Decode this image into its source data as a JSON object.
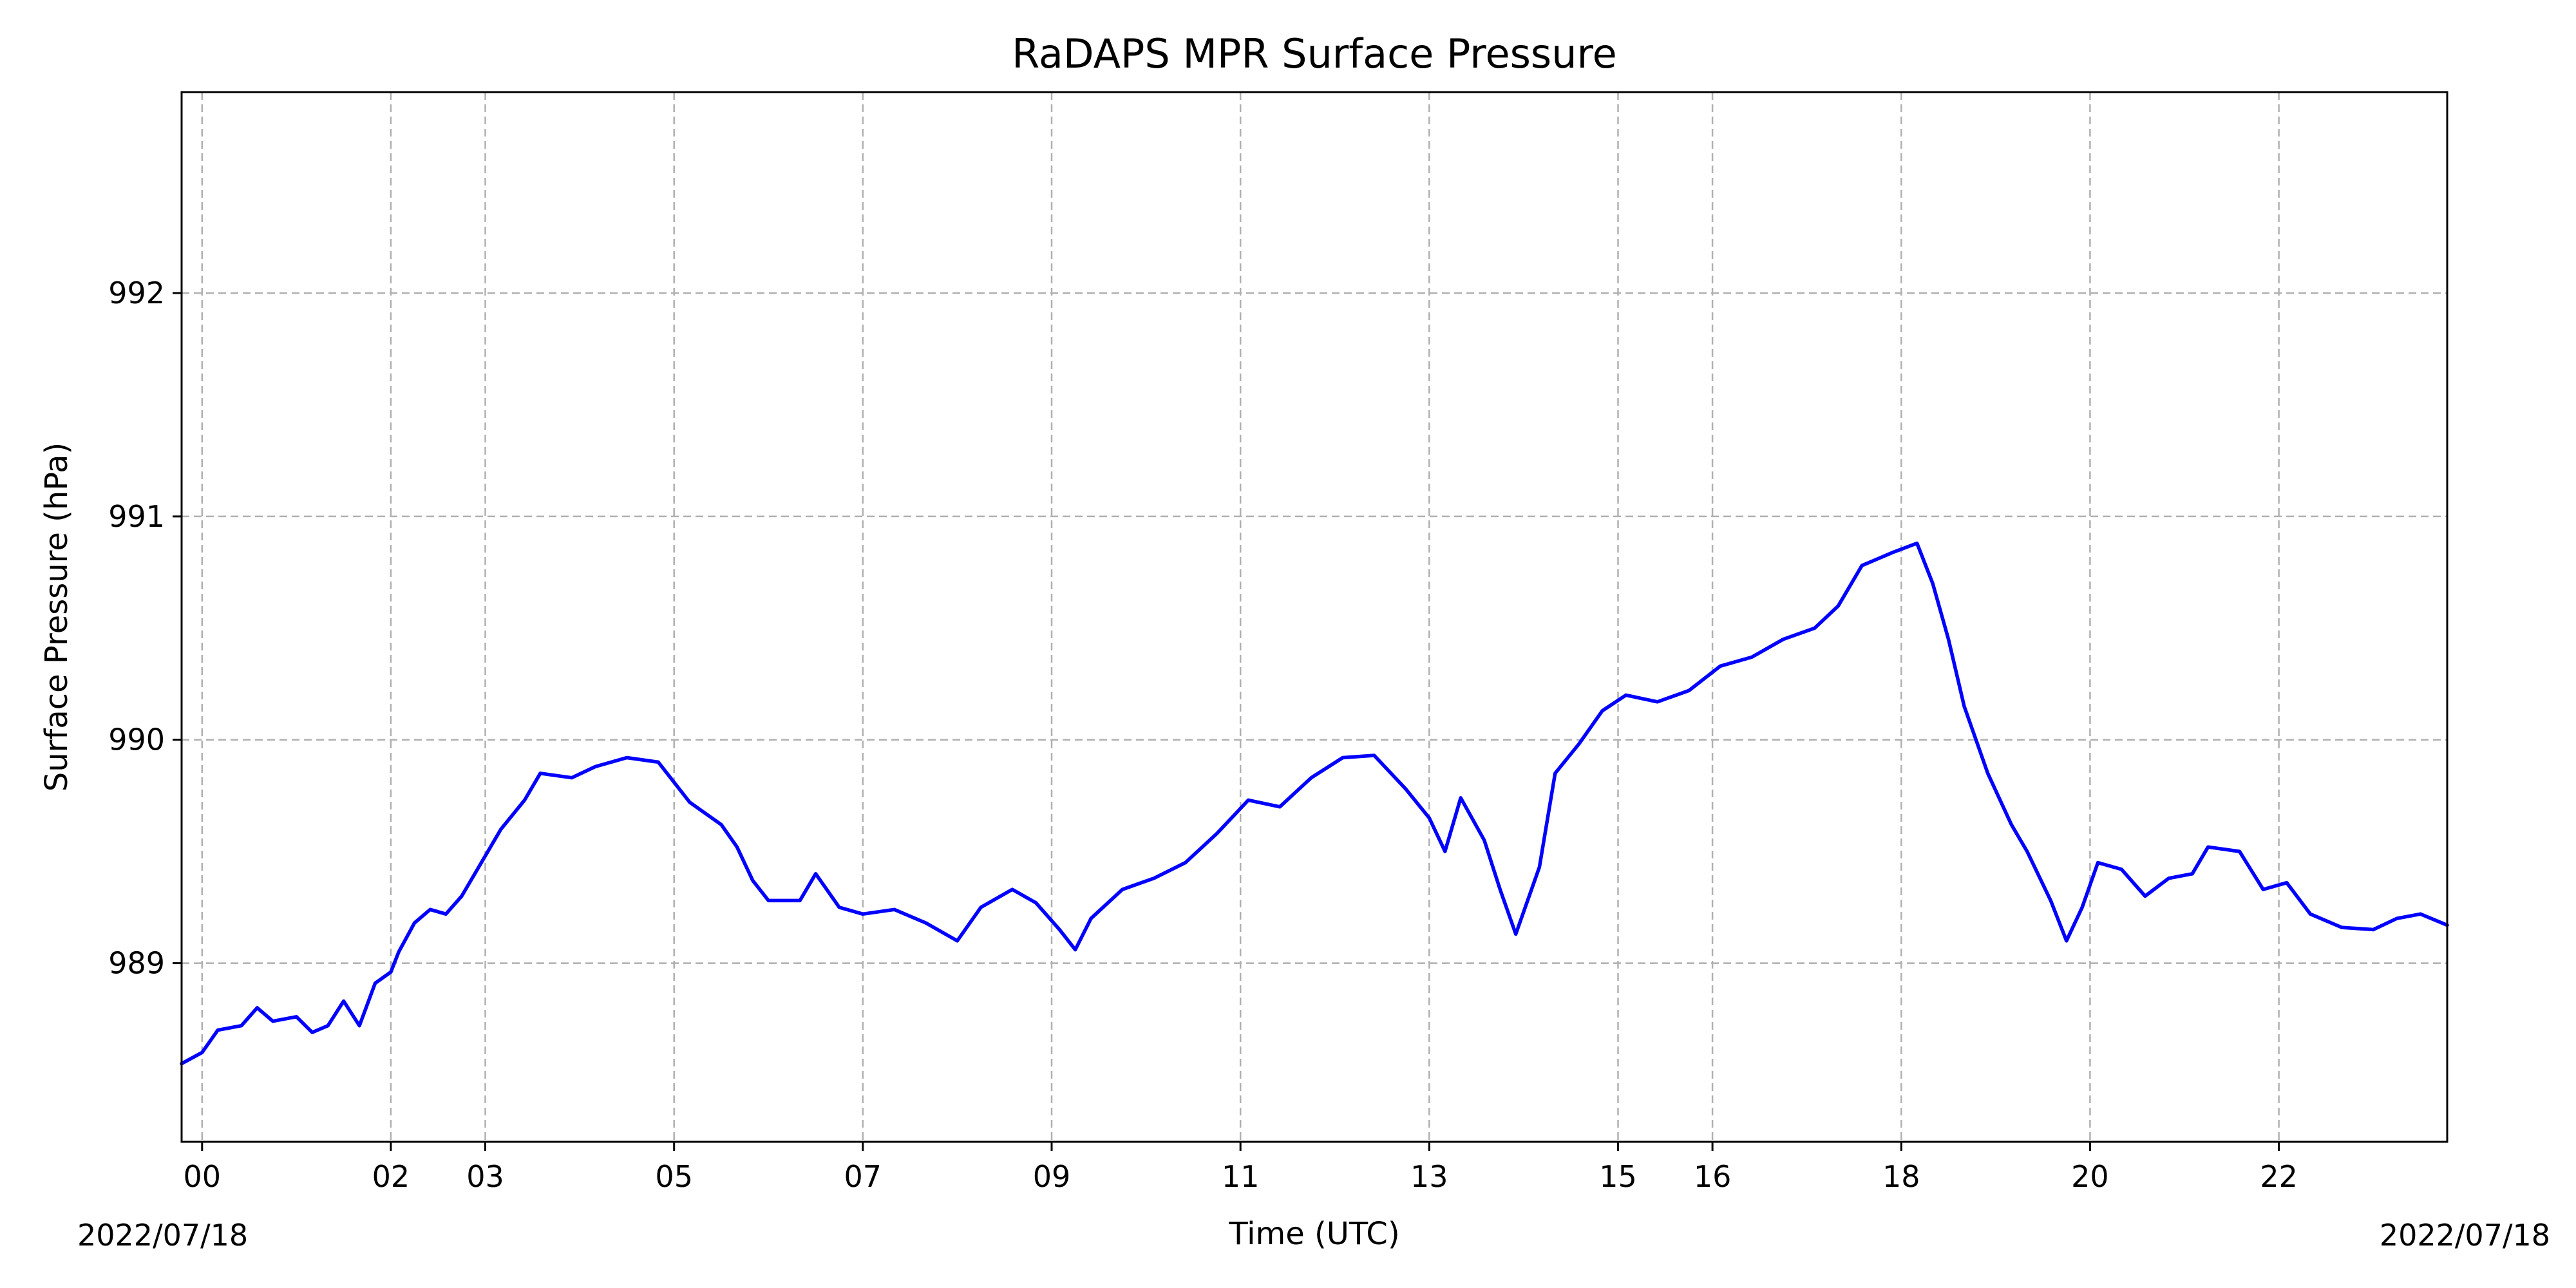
{
  "chart_data": {
    "type": "line",
    "title": "RaDAPS MPR Surface Pressure",
    "xlabel": "Time (UTC)",
    "ylabel": "Surface Pressure (hPa)",
    "x_start_label": "2022/07/18",
    "x_end_label": "2022/07/18",
    "xlim": [
      "2022-07-17T23:47",
      "2022-07-18T23:47"
    ],
    "ylim": [
      988.2,
      992.9
    ],
    "grid": true,
    "line_color": "#0000ff",
    "x_ticks": [
      {
        "t": "2022-07-18T00:00",
        "label": "00"
      },
      {
        "t": "2022-07-18T02:00",
        "label": "02"
      },
      {
        "t": "2022-07-18T03:00",
        "label": "03"
      },
      {
        "t": "2022-07-18T05:00",
        "label": "05"
      },
      {
        "t": "2022-07-18T07:00",
        "label": "07"
      },
      {
        "t": "2022-07-18T09:00",
        "label": "09"
      },
      {
        "t": "2022-07-18T11:00",
        "label": "11"
      },
      {
        "t": "2022-07-18T13:00",
        "label": "13"
      },
      {
        "t": "2022-07-18T15:00",
        "label": "15"
      },
      {
        "t": "2022-07-18T16:00",
        "label": "16"
      },
      {
        "t": "2022-07-18T18:00",
        "label": "18"
      },
      {
        "t": "2022-07-18T20:00",
        "label": "20"
      },
      {
        "t": "2022-07-18T22:00",
        "label": "22"
      }
    ],
    "y_ticks": [
      989,
      990,
      991,
      992
    ],
    "series": [
      {
        "points": [
          [
            "2022-07-17T23:47",
            988.55
          ],
          [
            "2022-07-18T00:00",
            988.6
          ],
          [
            "2022-07-18T00:10",
            988.7
          ],
          [
            "2022-07-18T00:25",
            988.72
          ],
          [
            "2022-07-18T00:35",
            988.8
          ],
          [
            "2022-07-18T00:45",
            988.74
          ],
          [
            "2022-07-18T01:00",
            988.76
          ],
          [
            "2022-07-18T01:10",
            988.69
          ],
          [
            "2022-07-18T01:20",
            988.72
          ],
          [
            "2022-07-18T01:30",
            988.83
          ],
          [
            "2022-07-18T01:40",
            988.72
          ],
          [
            "2022-07-18T01:50",
            988.91
          ],
          [
            "2022-07-18T02:00",
            988.96
          ],
          [
            "2022-07-18T02:05",
            989.05
          ],
          [
            "2022-07-18T02:15",
            989.18
          ],
          [
            "2022-07-18T02:25",
            989.24
          ],
          [
            "2022-07-18T02:35",
            989.22
          ],
          [
            "2022-07-18T02:45",
            989.3
          ],
          [
            "2022-07-18T03:00",
            989.48
          ],
          [
            "2022-07-18T03:10",
            989.6
          ],
          [
            "2022-07-18T03:25",
            989.73
          ],
          [
            "2022-07-18T03:35",
            989.85
          ],
          [
            "2022-07-18T03:55",
            989.83
          ],
          [
            "2022-07-18T04:10",
            989.88
          ],
          [
            "2022-07-18T04:30",
            989.92
          ],
          [
            "2022-07-18T04:50",
            989.9
          ],
          [
            "2022-07-18T05:10",
            989.72
          ],
          [
            "2022-07-18T05:30",
            989.62
          ],
          [
            "2022-07-18T05:40",
            989.52
          ],
          [
            "2022-07-18T05:50",
            989.37
          ],
          [
            "2022-07-18T06:00",
            989.28
          ],
          [
            "2022-07-18T06:20",
            989.28
          ],
          [
            "2022-07-18T06:30",
            989.4
          ],
          [
            "2022-07-18T06:45",
            989.25
          ],
          [
            "2022-07-18T07:00",
            989.22
          ],
          [
            "2022-07-18T07:20",
            989.24
          ],
          [
            "2022-07-18T07:40",
            989.18
          ],
          [
            "2022-07-18T08:00",
            989.1
          ],
          [
            "2022-07-18T08:15",
            989.25
          ],
          [
            "2022-07-18T08:35",
            989.33
          ],
          [
            "2022-07-18T08:50",
            989.27
          ],
          [
            "2022-07-18T09:05",
            989.15
          ],
          [
            "2022-07-18T09:15",
            989.06
          ],
          [
            "2022-07-18T09:25",
            989.2
          ],
          [
            "2022-07-18T09:45",
            989.33
          ],
          [
            "2022-07-18T10:05",
            989.38
          ],
          [
            "2022-07-18T10:25",
            989.45
          ],
          [
            "2022-07-18T10:45",
            989.58
          ],
          [
            "2022-07-18T11:05",
            989.73
          ],
          [
            "2022-07-18T11:25",
            989.7
          ],
          [
            "2022-07-18T11:45",
            989.83
          ],
          [
            "2022-07-18T12:05",
            989.92
          ],
          [
            "2022-07-18T12:25",
            989.93
          ],
          [
            "2022-07-18T12:45",
            989.78
          ],
          [
            "2022-07-18T13:00",
            989.65
          ],
          [
            "2022-07-18T13:10",
            989.5
          ],
          [
            "2022-07-18T13:20",
            989.74
          ],
          [
            "2022-07-18T13:35",
            989.55
          ],
          [
            "2022-07-18T13:45",
            989.33
          ],
          [
            "2022-07-18T13:55",
            989.13
          ],
          [
            "2022-07-18T14:10",
            989.43
          ],
          [
            "2022-07-18T14:20",
            989.85
          ],
          [
            "2022-07-18T14:35",
            989.98
          ],
          [
            "2022-07-18T14:50",
            990.13
          ],
          [
            "2022-07-18T15:05",
            990.2
          ],
          [
            "2022-07-18T15:25",
            990.17
          ],
          [
            "2022-07-18T15:45",
            990.22
          ],
          [
            "2022-07-18T16:05",
            990.33
          ],
          [
            "2022-07-18T16:25",
            990.37
          ],
          [
            "2022-07-18T16:45",
            990.45
          ],
          [
            "2022-07-18T17:05",
            990.5
          ],
          [
            "2022-07-18T17:20",
            990.6
          ],
          [
            "2022-07-18T17:35",
            990.78
          ],
          [
            "2022-07-18T17:55",
            990.84
          ],
          [
            "2022-07-18T18:10",
            990.88
          ],
          [
            "2022-07-18T18:20",
            990.7
          ],
          [
            "2022-07-18T18:30",
            990.45
          ],
          [
            "2022-07-18T18:40",
            990.15
          ],
          [
            "2022-07-18T18:55",
            989.85
          ],
          [
            "2022-07-18T19:10",
            989.62
          ],
          [
            "2022-07-18T19:20",
            989.5
          ],
          [
            "2022-07-18T19:35",
            989.28
          ],
          [
            "2022-07-18T19:45",
            989.1
          ],
          [
            "2022-07-18T19:55",
            989.25
          ],
          [
            "2022-07-18T20:05",
            989.45
          ],
          [
            "2022-07-18T20:20",
            989.42
          ],
          [
            "2022-07-18T20:35",
            989.3
          ],
          [
            "2022-07-18T20:50",
            989.38
          ],
          [
            "2022-07-18T21:05",
            989.4
          ],
          [
            "2022-07-18T21:15",
            989.52
          ],
          [
            "2022-07-18T21:35",
            989.5
          ],
          [
            "2022-07-18T21:50",
            989.33
          ],
          [
            "2022-07-18T22:05",
            989.36
          ],
          [
            "2022-07-18T22:20",
            989.22
          ],
          [
            "2022-07-18T22:40",
            989.16
          ],
          [
            "2022-07-18T23:00",
            989.15
          ],
          [
            "2022-07-18T23:15",
            989.2
          ],
          [
            "2022-07-18T23:30",
            989.22
          ],
          [
            "2022-07-18T23:47",
            989.17
          ]
        ]
      }
    ]
  }
}
